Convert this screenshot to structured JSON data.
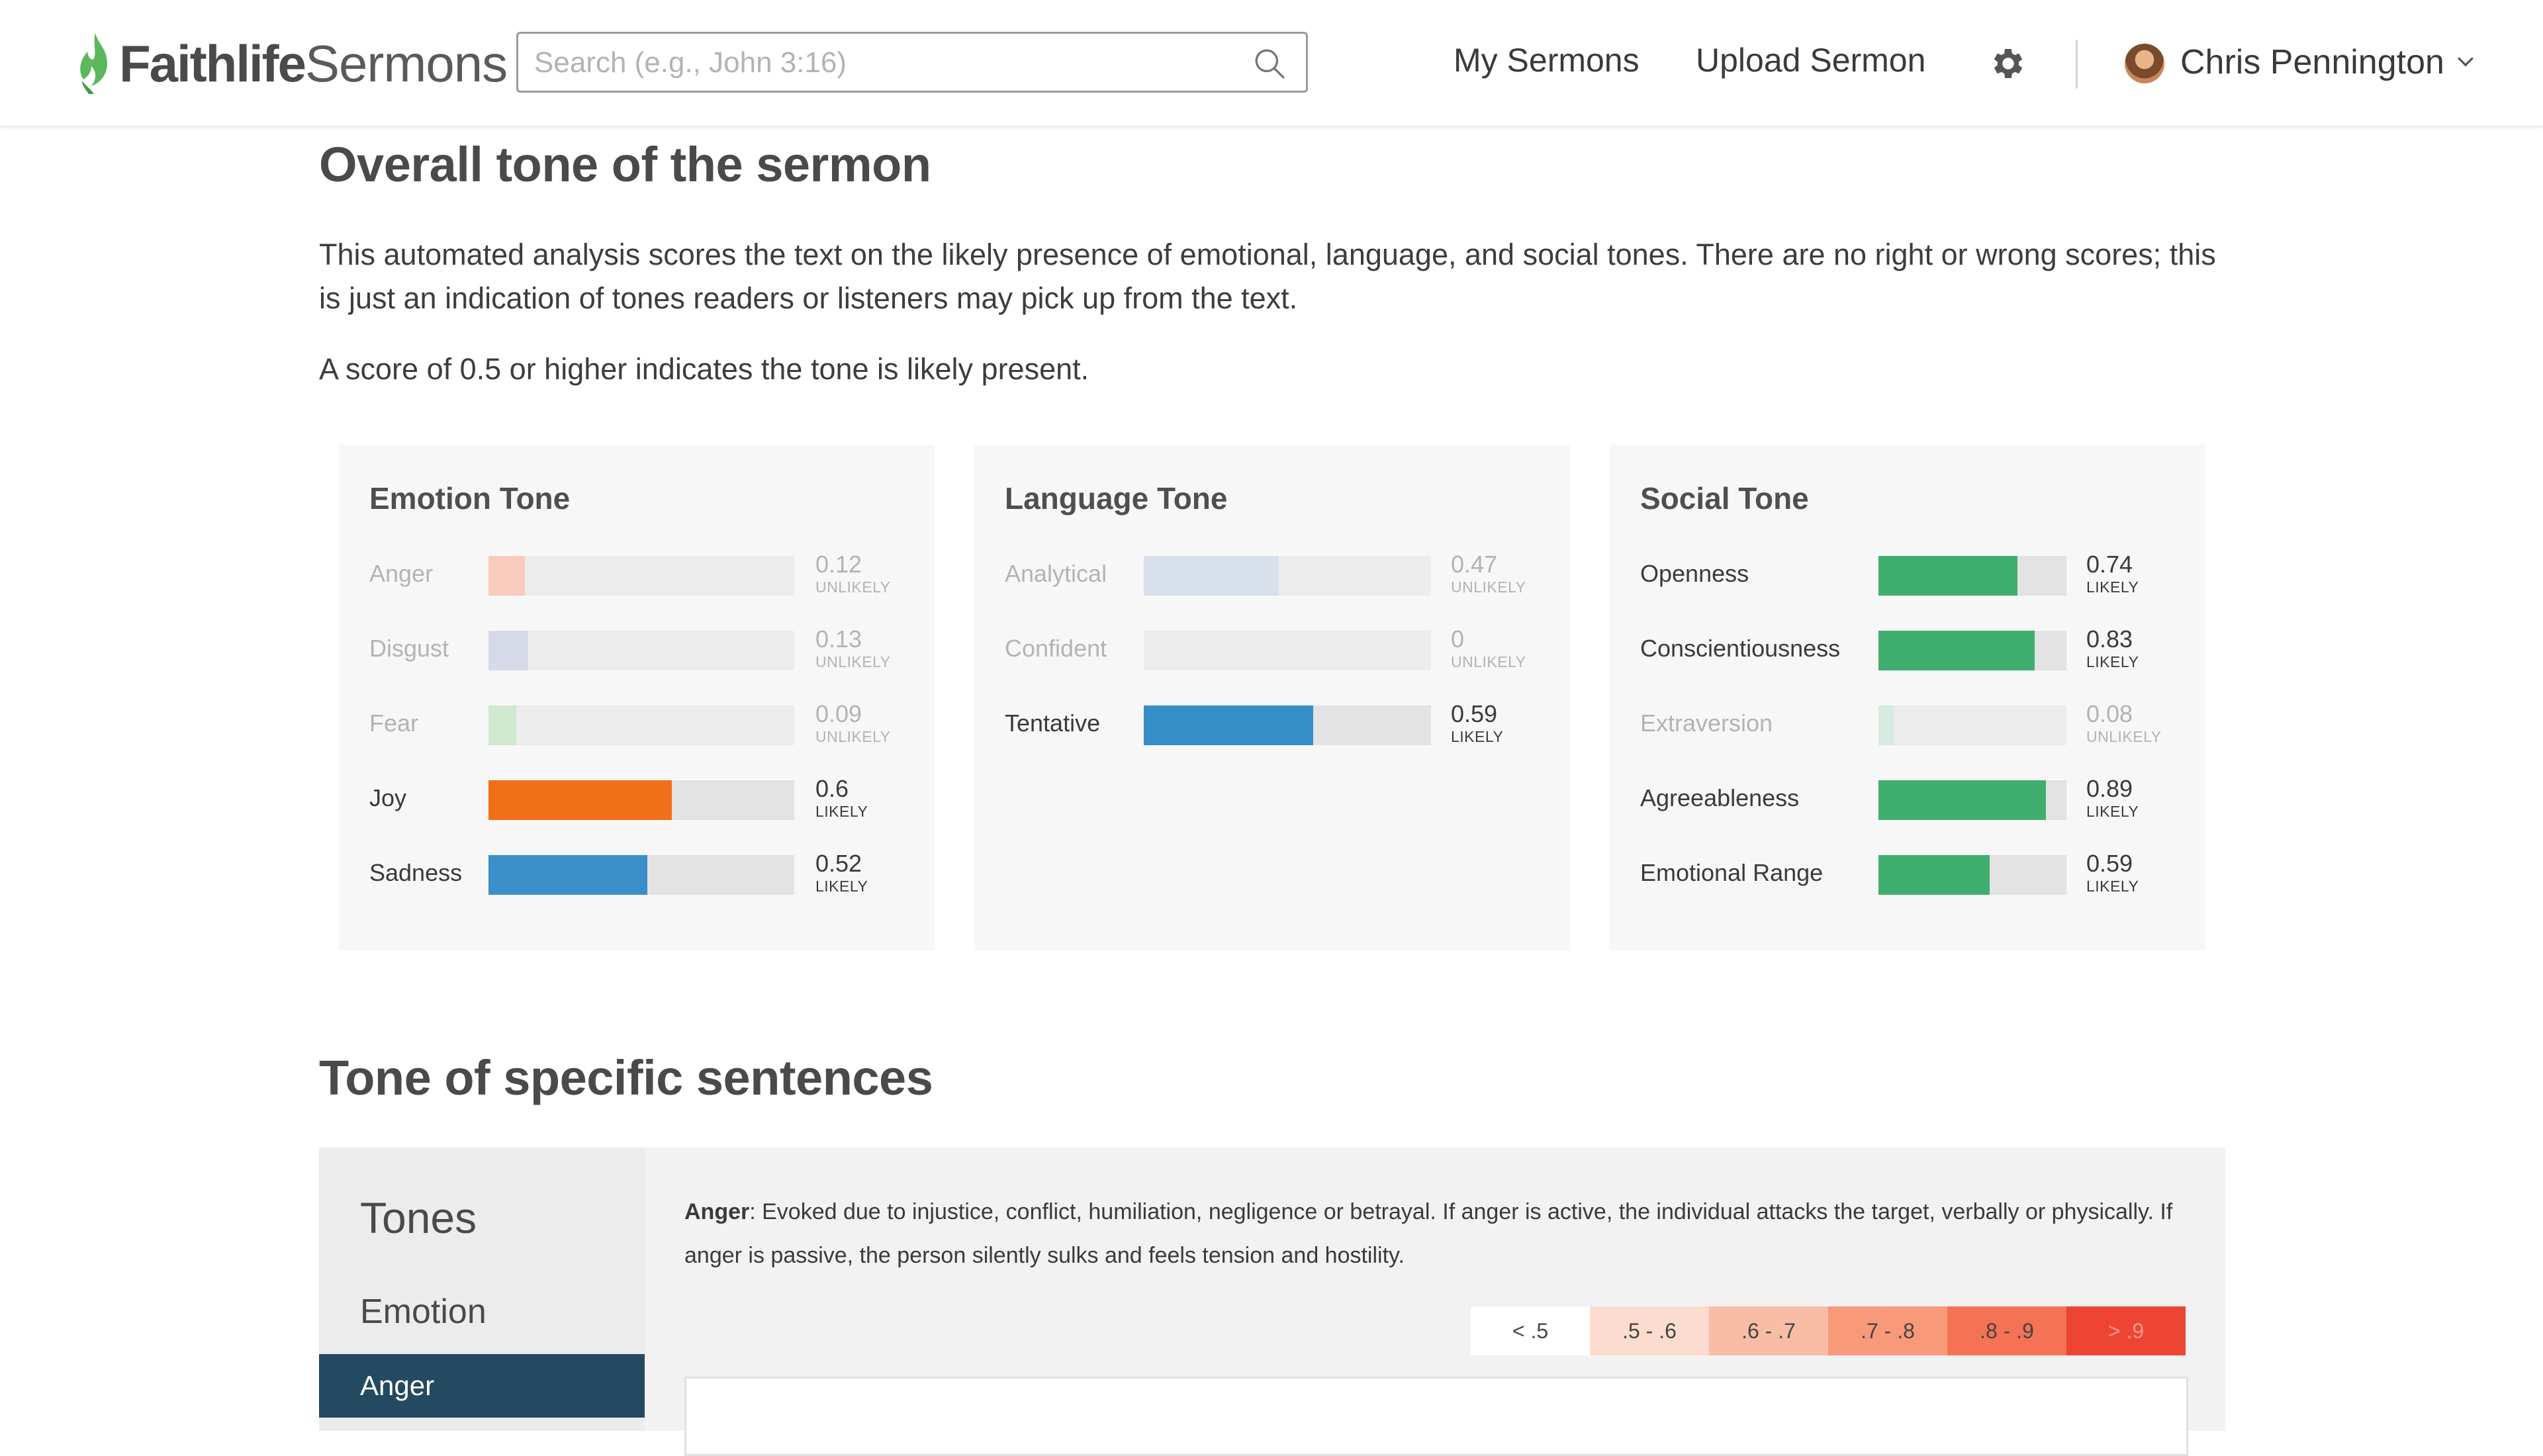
{
  "header": {
    "brand_bold": "Faithlife",
    "brand_light": "Sermons",
    "search_placeholder": "Search (e.g., John 3:16)",
    "nav": [
      "My Sermons",
      "Upload Sermon"
    ],
    "settings_icon": "gear-icon",
    "user_name": "Chris Pennington",
    "brand_color": "#5cb85c"
  },
  "overall": {
    "heading": "Overall tone of the sermon",
    "intro": "This automated analysis scores the text on the likely presence of emotional, language, and social tones. There are no right or wrong scores; this is just an indication of tones readers or listeners may pick up from the text.",
    "threshold_note": "A score of 0.5 or higher indicates the tone is likely present."
  },
  "cards": [
    {
      "title": "Emotion Tone",
      "rows": [
        {
          "label": "Anger",
          "value": "0.12",
          "score": 0.12,
          "status": "UNLIKELY",
          "color": "#f9cbbd"
        },
        {
          "label": "Disgust",
          "value": "0.13",
          "score": 0.13,
          "status": "UNLIKELY",
          "color": "#d6dae8"
        },
        {
          "label": "Fear",
          "value": "0.09",
          "score": 0.09,
          "status": "UNLIKELY",
          "color": "#cfe9cf"
        },
        {
          "label": "Joy",
          "value": "0.6",
          "score": 0.6,
          "status": "LIKELY",
          "color": "#f26f1a"
        },
        {
          "label": "Sadness",
          "value": "0.52",
          "score": 0.52,
          "status": "LIKELY",
          "color": "#3a8fc9"
        }
      ]
    },
    {
      "title": "Language Tone",
      "rows": [
        {
          "label": "Analytical",
          "value": "0.47",
          "score": 0.47,
          "status": "UNLIKELY",
          "color": "#d8e0ec"
        },
        {
          "label": "Confident",
          "value": "0",
          "score": 0,
          "status": "UNLIKELY",
          "color": "#d8e0ec"
        },
        {
          "label": "Tentative",
          "value": "0.59",
          "score": 0.59,
          "status": "LIKELY",
          "color": "#358ec7"
        }
      ]
    },
    {
      "title": "Social Tone",
      "rows": [
        {
          "label": "Openness",
          "value": "0.74",
          "score": 0.74,
          "status": "LIKELY",
          "color": "#3fae6e"
        },
        {
          "label": "Conscientiousness",
          "value": "0.83",
          "score": 0.83,
          "status": "LIKELY",
          "color": "#3fae6e"
        },
        {
          "label": "Extraversion",
          "value": "0.08",
          "score": 0.08,
          "status": "UNLIKELY",
          "color": "#d5ece0"
        },
        {
          "label": "Agreeableness",
          "value": "0.89",
          "score": 0.89,
          "status": "LIKELY",
          "color": "#3fae6e"
        },
        {
          "label": "Emotional Range",
          "value": "0.59",
          "score": 0.59,
          "status": "LIKELY",
          "color": "#3fae6e"
        }
      ]
    }
  ],
  "sentences": {
    "heading": "Tone of specific sentences",
    "sidebar_title": "Tones",
    "category": "Emotion",
    "selected": "Anger",
    "desc_term": "Anger",
    "desc_text": ": Evoked due to injustice, conflict, humiliation, negligence or betrayal. If anger is active, the individual attacks the target, verbally or physically. If anger is passive, the person silently sulks and feels tension and hostility.",
    "legend": [
      {
        "label": "< .5",
        "bg": "#ffffff",
        "fg": "#444444"
      },
      {
        "label": ".5 - .6",
        "bg": "#fcdccf",
        "fg": "#444444"
      },
      {
        "label": ".6 - .7",
        "bg": "#f9bda6",
        "fg": "#444444"
      },
      {
        "label": ".7 - .8",
        "bg": "#f8997a",
        "fg": "#444444"
      },
      {
        "label": ".8 - .9",
        "bg": "#f57355",
        "fg": "#444444"
      },
      {
        "label": "> .9",
        "bg": "#ee4434",
        "fg": "#f59a8a"
      }
    ]
  }
}
